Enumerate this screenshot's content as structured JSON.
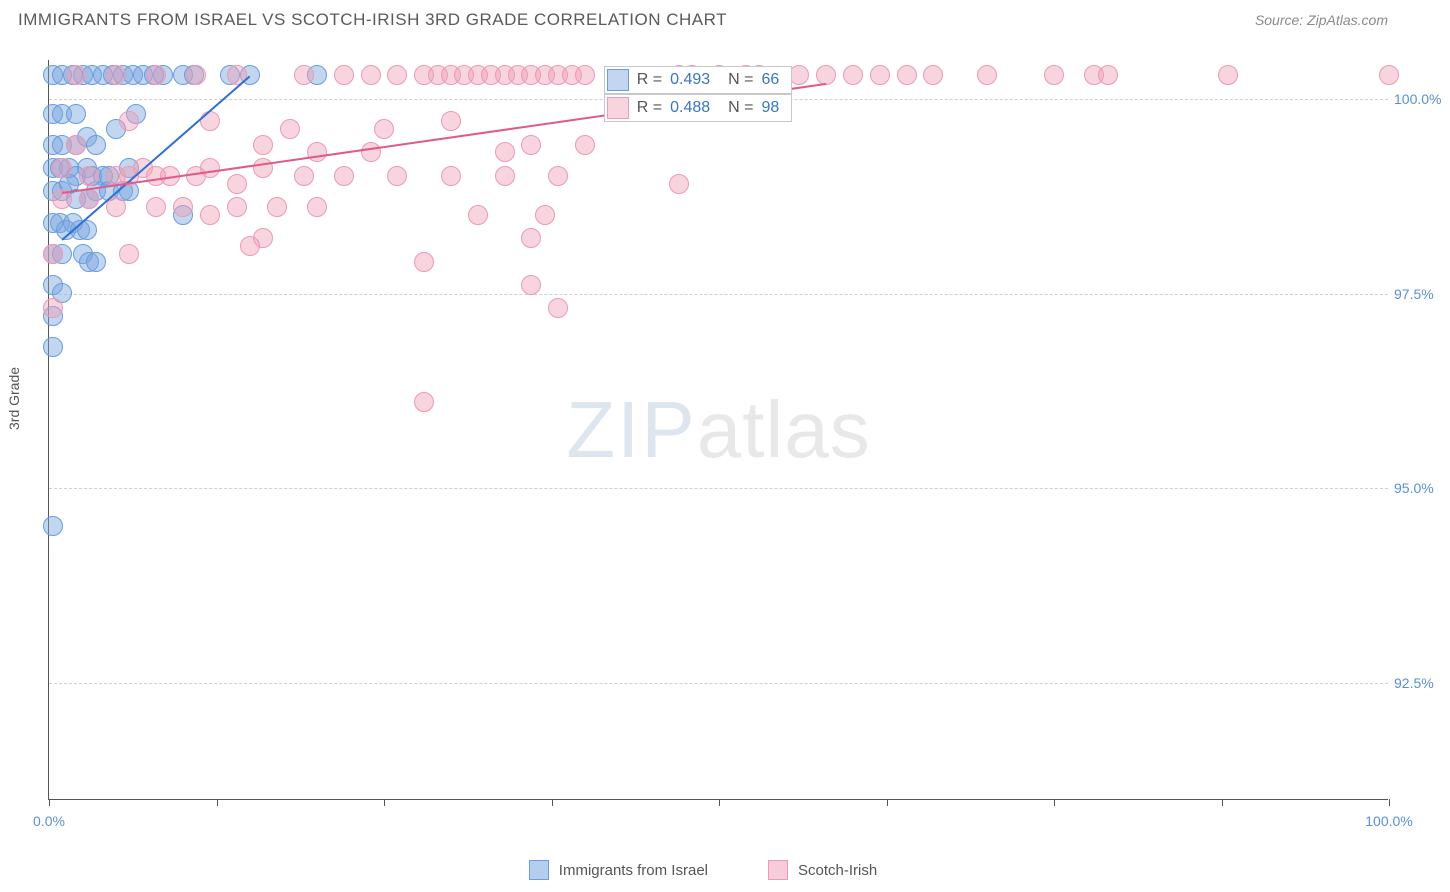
{
  "header": {
    "title": "IMMIGRANTS FROM ISRAEL VS SCOTCH-IRISH 3RD GRADE CORRELATION CHART",
    "source": "Source: ZipAtlas.com"
  },
  "chart": {
    "type": "scatter",
    "ylabel": "3rd Grade",
    "xlim": [
      0,
      100
    ],
    "ylim": [
      91,
      100.5
    ],
    "ytick_values": [
      92.5,
      95.0,
      97.5,
      100.0
    ],
    "ytick_labels": [
      "92.5%",
      "95.0%",
      "97.5%",
      "100.0%"
    ],
    "xtick_values": [
      0,
      12.5,
      25,
      37.5,
      50,
      62.5,
      75,
      87.5,
      100
    ],
    "xtick_labels": {
      "0": "0.0%",
      "100": "100.0%"
    },
    "grid_color": "#d0d0d0",
    "background_color": "#ffffff",
    "marker_radius": 10,
    "series": [
      {
        "name": "Immigrants from Israel",
        "color_fill": "rgba(120,165,222,0.45)",
        "color_stroke": "#6a9de0",
        "reg_color": "#2f6fd0",
        "reg_line": {
          "x1": 1,
          "y1": 98.2,
          "x2": 15,
          "y2": 100.3
        },
        "stats": {
          "R": "0.493",
          "N": "66"
        },
        "points": [
          [
            0.3,
            100.3
          ],
          [
            1,
            100.3
          ],
          [
            1.8,
            100.3
          ],
          [
            2.5,
            100.3
          ],
          [
            3.2,
            100.3
          ],
          [
            4,
            100.3
          ],
          [
            4.8,
            100.3
          ],
          [
            5.5,
            100.3
          ],
          [
            6.3,
            100.3
          ],
          [
            7,
            100.3
          ],
          [
            7.8,
            100.3
          ],
          [
            8.5,
            100.3
          ],
          [
            10,
            100.3
          ],
          [
            10.8,
            100.3
          ],
          [
            13.5,
            100.3
          ],
          [
            15,
            100.3
          ],
          [
            20,
            100.3
          ],
          [
            0.3,
            99.8
          ],
          [
            1,
            99.8
          ],
          [
            2,
            99.8
          ],
          [
            5,
            99.6
          ],
          [
            6.5,
            99.8
          ],
          [
            0.3,
            99.4
          ],
          [
            1,
            99.4
          ],
          [
            2,
            99.4
          ],
          [
            2.8,
            99.5
          ],
          [
            3.5,
            99.4
          ],
          [
            0.3,
            99.1
          ],
          [
            0.8,
            99.1
          ],
          [
            1.5,
            99.1
          ],
          [
            2,
            99.0
          ],
          [
            2.8,
            99.1
          ],
          [
            3.2,
            99.0
          ],
          [
            4,
            99.0
          ],
          [
            4.5,
            99.0
          ],
          [
            6,
            99.1
          ],
          [
            0.3,
            98.8
          ],
          [
            1,
            98.8
          ],
          [
            1.5,
            98.9
          ],
          [
            2,
            98.7
          ],
          [
            3,
            98.7
          ],
          [
            3.5,
            98.8
          ],
          [
            4.5,
            98.8
          ],
          [
            5.5,
            98.8
          ],
          [
            6,
            98.8
          ],
          [
            10,
            98.5
          ],
          [
            0.3,
            98.4
          ],
          [
            0.8,
            98.4
          ],
          [
            1.3,
            98.3
          ],
          [
            1.8,
            98.4
          ],
          [
            2.3,
            98.3
          ],
          [
            2.8,
            98.3
          ],
          [
            0.3,
            98.0
          ],
          [
            1,
            98.0
          ],
          [
            2.5,
            98.0
          ],
          [
            3,
            97.9
          ],
          [
            3.5,
            97.9
          ],
          [
            0.3,
            97.6
          ],
          [
            1,
            97.5
          ],
          [
            0.3,
            97.2
          ],
          [
            0.3,
            96.8
          ],
          [
            0.3,
            94.5
          ]
        ]
      },
      {
        "name": "Scotch-Irish",
        "color_fill": "rgba(240,160,185,0.45)",
        "color_stroke": "#ea9bb5",
        "reg_color": "#e05a8a",
        "reg_line": {
          "x1": 1,
          "y1": 98.8,
          "x2": 58,
          "y2": 100.2
        },
        "stats": {
          "R": "0.488",
          "N": "98"
        },
        "points": [
          [
            2,
            100.3
          ],
          [
            5,
            100.3
          ],
          [
            8,
            100.3
          ],
          [
            11,
            100.3
          ],
          [
            14,
            100.3
          ],
          [
            19,
            100.3
          ],
          [
            22,
            100.3
          ],
          [
            24,
            100.3
          ],
          [
            26,
            100.3
          ],
          [
            28,
            100.3
          ],
          [
            29,
            100.3
          ],
          [
            30,
            100.3
          ],
          [
            31,
            100.3
          ],
          [
            32,
            100.3
          ],
          [
            33,
            100.3
          ],
          [
            34,
            100.3
          ],
          [
            35,
            100.3
          ],
          [
            36,
            100.3
          ],
          [
            37,
            100.3
          ],
          [
            38,
            100.3
          ],
          [
            39,
            100.3
          ],
          [
            40,
            100.3
          ],
          [
            47,
            100.3
          ],
          [
            48,
            100.3
          ],
          [
            50,
            100.3
          ],
          [
            52,
            100.3
          ],
          [
            53,
            100.3
          ],
          [
            56,
            100.3
          ],
          [
            58,
            100.3
          ],
          [
            60,
            100.3
          ],
          [
            62,
            100.3
          ],
          [
            64,
            100.3
          ],
          [
            66,
            100.3
          ],
          [
            70,
            100.3
          ],
          [
            75,
            100.3
          ],
          [
            78,
            100.3
          ],
          [
            79,
            100.3
          ],
          [
            88,
            100.3
          ],
          [
            100,
            100.3
          ],
          [
            6,
            99.7
          ],
          [
            12,
            99.7
          ],
          [
            18,
            99.6
          ],
          [
            25,
            99.6
          ],
          [
            30,
            99.7
          ],
          [
            2,
            99.4
          ],
          [
            16,
            99.4
          ],
          [
            20,
            99.3
          ],
          [
            24,
            99.3
          ],
          [
            34,
            99.3
          ],
          [
            36,
            99.4
          ],
          [
            40,
            99.4
          ],
          [
            1,
            99.1
          ],
          [
            3,
            99.0
          ],
          [
            5,
            99.0
          ],
          [
            6,
            99.0
          ],
          [
            7,
            99.1
          ],
          [
            8,
            99.0
          ],
          [
            9,
            99.0
          ],
          [
            11,
            99.0
          ],
          [
            12,
            99.1
          ],
          [
            14,
            98.9
          ],
          [
            16,
            99.1
          ],
          [
            19,
            99.0
          ],
          [
            22,
            99.0
          ],
          [
            26,
            99.0
          ],
          [
            30,
            99.0
          ],
          [
            34,
            99.0
          ],
          [
            38,
            99.0
          ],
          [
            47,
            98.9
          ],
          [
            1,
            98.7
          ],
          [
            3,
            98.7
          ],
          [
            5,
            98.6
          ],
          [
            8,
            98.6
          ],
          [
            10,
            98.6
          ],
          [
            12,
            98.5
          ],
          [
            14,
            98.6
          ],
          [
            17,
            98.6
          ],
          [
            20,
            98.6
          ],
          [
            32,
            98.5
          ],
          [
            37,
            98.5
          ],
          [
            16,
            98.2
          ],
          [
            15,
            98.1
          ],
          [
            36,
            98.2
          ],
          [
            0.3,
            98.0
          ],
          [
            6,
            98.0
          ],
          [
            28,
            97.9
          ],
          [
            0.3,
            97.3
          ],
          [
            36,
            97.6
          ],
          [
            38,
            97.3
          ],
          [
            28,
            96.1
          ]
        ]
      }
    ],
    "stats_box": {
      "left_pct": 41.4,
      "top_pct": 0.8
    },
    "watermark": {
      "zip": "ZIP",
      "atlas": "atlas"
    }
  },
  "legend": {
    "items": [
      {
        "label": "Immigrants from Israel",
        "fill": "rgba(120,165,222,0.55)",
        "stroke": "#6a9de0"
      },
      {
        "label": "Scotch-Irish",
        "fill": "rgba(240,160,185,0.55)",
        "stroke": "#ea9bb5"
      }
    ]
  }
}
